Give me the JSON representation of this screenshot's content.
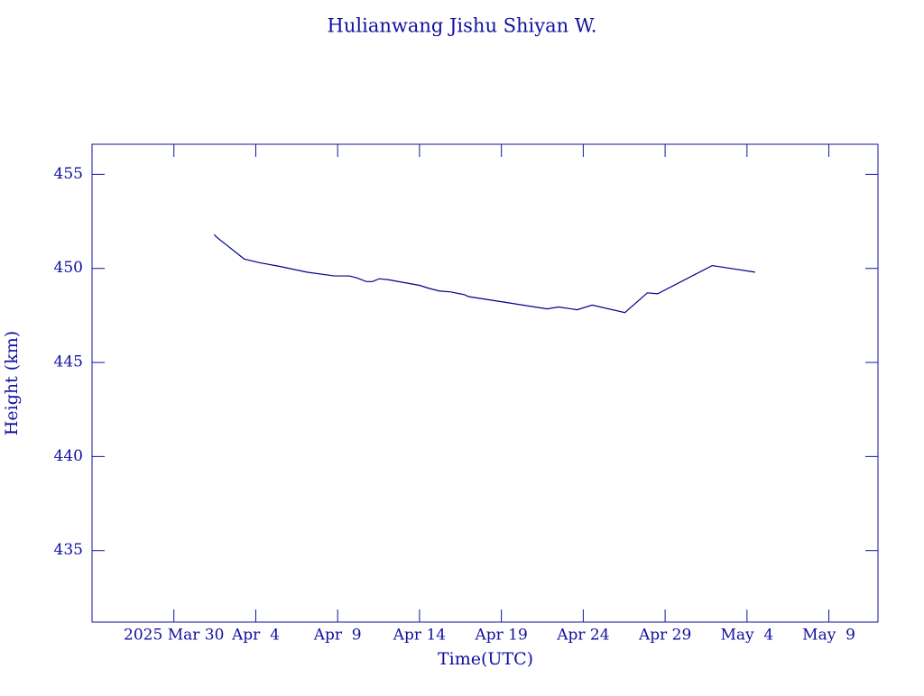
{
  "chart_data": {
    "type": "line",
    "title": "Hulianwang Jishu Shiyan W.",
    "xlabel": "Time(UTC)",
    "ylabel": "Height (km)",
    "x": [
      "2025-04-01T11:00",
      "2025-04-01T15:00",
      "2025-04-03T07:00",
      "2025-04-04T06:00",
      "2025-04-05T12:00",
      "2025-04-07T03:00",
      "2025-04-08T19:00",
      "2025-04-09T17:00",
      "2025-04-10T04:00",
      "2025-04-10T18:00",
      "2025-04-11T03:00",
      "2025-04-11T13:00",
      "2025-04-12T02:00",
      "2025-04-14T00:00",
      "2025-04-14T13:00",
      "2025-04-15T05:00",
      "2025-04-15T22:00",
      "2025-04-16T18:00",
      "2025-04-17T00:00",
      "2025-04-19T05:00",
      "2025-04-21T19:00",
      "2025-04-22T12:00",
      "2025-04-23T15:00",
      "2025-04-24T13:00",
      "2025-04-26T13:00",
      "2025-04-27T22:00",
      "2025-04-28T13:00",
      "2025-05-01T21:00",
      "2025-05-04T12:00"
    ],
    "series": [
      {
        "color": "#00008b",
        "values": [
          451.8,
          451.65,
          450.5,
          450.3,
          450.1,
          449.8,
          449.6,
          449.6,
          449.5,
          449.3,
          449.3,
          449.45,
          449.4,
          449.1,
          448.95,
          448.8,
          448.75,
          448.6,
          448.5,
          448.2,
          447.85,
          447.95,
          447.8,
          448.05,
          447.65,
          448.7,
          448.65,
          450.15,
          449.8
        ]
      }
    ],
    "xlim": [
      "2025-03-25T00:00",
      "2025-05-12T00:00"
    ],
    "xticks": [
      {
        "value": "2025-03-30",
        "label": "2025 Mar 30"
      },
      {
        "value": "2025-04-04",
        "label": "Apr  4"
      },
      {
        "value": "2025-04-09",
        "label": "Apr  9"
      },
      {
        "value": "2025-04-14",
        "label": "Apr 14"
      },
      {
        "value": "2025-04-19",
        "label": "Apr 19"
      },
      {
        "value": "2025-04-24",
        "label": "Apr 24"
      },
      {
        "value": "2025-04-29",
        "label": "Apr 29"
      },
      {
        "value": "2025-05-04",
        "label": "May  4"
      },
      {
        "value": "2025-05-09",
        "label": "May  9"
      }
    ],
    "ylim": [
      431.2,
      456.6
    ],
    "yticks": [
      435,
      440,
      445,
      450,
      455
    ],
    "axis_color": "#1010a0"
  }
}
